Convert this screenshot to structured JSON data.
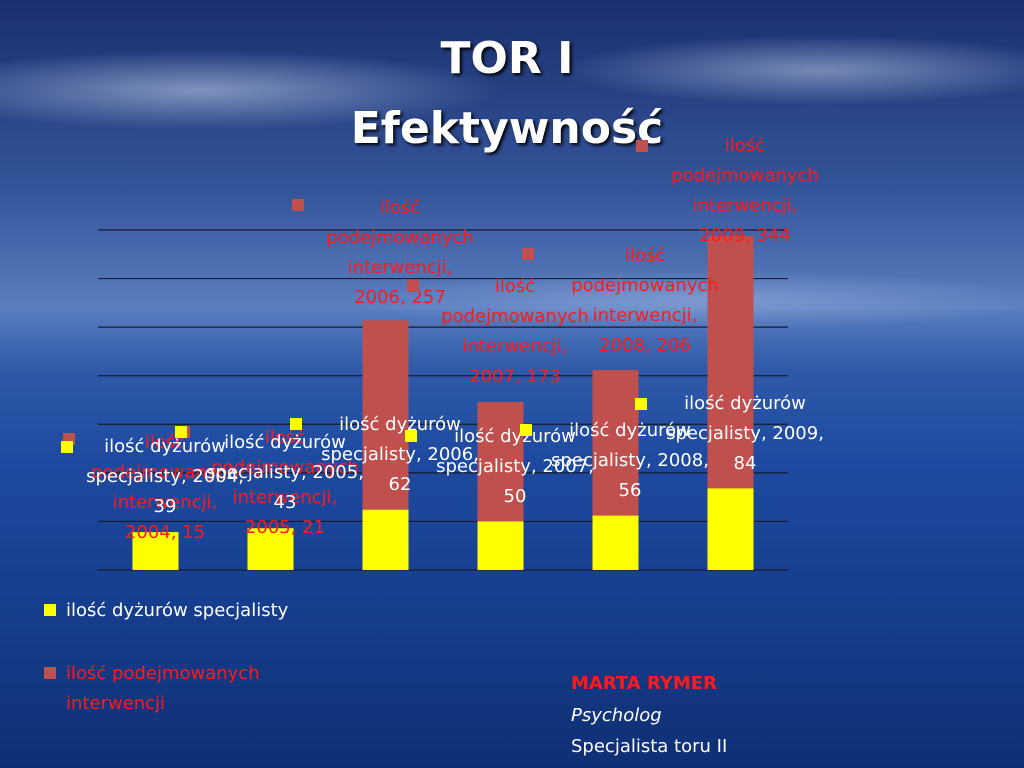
{
  "slide": {
    "title_lines": [
      "TOR I",
      "Efektywność"
    ],
    "author": "MARTA RYMER",
    "role": "Psycholog",
    "position": "Specjalista toru II"
  },
  "chart_data": {
    "type": "bar",
    "overlap": true,
    "categories": [
      "2004",
      "2005",
      "2006",
      "2007",
      "2008",
      "2009"
    ],
    "series": [
      {
        "name": "ilość podejmowanych interwencji",
        "color": "#c0504d",
        "label_color": "#ff1a1a",
        "values": [
          15,
          21,
          257,
          173,
          206,
          344
        ],
        "value_labels": [
          "ilość podejmowanych interwencji, 2004, 15",
          "ilość podejmowanych interwencji, 2005, 21",
          "ilość podejmowanych interwencji, 2006, 257",
          "ilość podejmowanych interwencji, 2007, 173",
          "ilość podejmowanych interwencji, 2008, 206",
          "ilość podejmowanych interwencji, 2009, 344"
        ]
      },
      {
        "name": "ilość dyżurów specjalisty",
        "color": "#ffff00",
        "label_color": "#ffffff",
        "values": [
          39,
          43,
          62,
          50,
          56,
          84
        ],
        "value_labels": [
          "ilość dyżurów specjalisty, 2004, 39",
          "ilość dyżurów specjalisty, 2005, 43",
          "ilość dyżurów specjalisty, 2006, 62",
          "ilość dyżurów specjalisty, 2007, 50",
          "ilość dyżurów specjalisty, 2008, 56",
          "ilość dyżurów specjalisty, 2009, 84"
        ]
      }
    ],
    "ylim": [
      0,
      350
    ],
    "yticks": [
      0,
      50,
      100,
      150,
      200,
      250,
      300,
      350
    ],
    "grid": true
  }
}
